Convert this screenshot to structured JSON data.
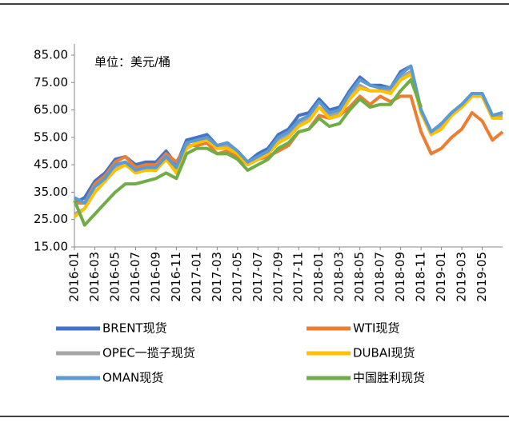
{
  "chart_data": {
    "type": "line",
    "annotation": "单位：美元/桶",
    "categories": [
      "2016-01",
      null,
      "2016-03",
      null,
      "2016-05",
      null,
      "2016-07",
      null,
      "2016-09",
      null,
      "2016-11",
      null,
      "2017-01",
      null,
      "2017-03",
      null,
      "2017-05",
      null,
      "2017-07",
      null,
      "2017-09",
      null,
      "2017-11",
      null,
      "2018-01",
      null,
      "2018-03",
      null,
      "2018-05",
      null,
      "2018-07",
      null,
      "2018-09",
      null,
      "2018-11",
      null,
      "2019-01",
      null,
      "2019-03",
      null,
      "2019-05",
      null,
      null
    ],
    "series": [
      {
        "name": "BRENT现货",
        "color": "#4472c4",
        "values": [
          31,
          33,
          39,
          42,
          47,
          48,
          45,
          46,
          46,
          50,
          45,
          54,
          55,
          56,
          52,
          53,
          50,
          46,
          49,
          51,
          56,
          58,
          63,
          64,
          69,
          65,
          66,
          72,
          77,
          74,
          74,
          73,
          79,
          81,
          65,
          57,
          60,
          64,
          67,
          71,
          71,
          63,
          64
        ]
      },
      {
        "name": "WTI现货",
        "color": "#ed7d31",
        "values": [
          31,
          31,
          38,
          41,
          46,
          48,
          44,
          45,
          45,
          49,
          46,
          52,
          52,
          53,
          49,
          50,
          48,
          45,
          47,
          48,
          50,
          52,
          57,
          58,
          63,
          62,
          63,
          66,
          70,
          67,
          70,
          68,
          70,
          70,
          57,
          49,
          51,
          55,
          58,
          64,
          61,
          54,
          57
        ]
      },
      {
        "name": "OPEC一揽子现货",
        "color": "#a5a5a5",
        "values": [
          27,
          29,
          35,
          39,
          44,
          46,
          43,
          43,
          43,
          48,
          43,
          51,
          53,
          54,
          51,
          52,
          50,
          45,
          47,
          50,
          54,
          56,
          60,
          62,
          66,
          63,
          64,
          69,
          74,
          72,
          72,
          72,
          77,
          79,
          65,
          56,
          59,
          63,
          66,
          70,
          70,
          63,
          63
        ]
      },
      {
        "name": "DUBAI现货",
        "color": "#ffc000",
        "values": [
          26,
          29,
          35,
          39,
          43,
          45,
          42,
          43,
          43,
          47,
          42,
          51,
          53,
          54,
          51,
          51,
          49,
          45,
          47,
          49,
          53,
          55,
          59,
          61,
          66,
          62,
          63,
          69,
          73,
          72,
          72,
          71,
          76,
          78,
          64,
          56,
          58,
          63,
          66,
          70,
          70,
          62,
          62
        ]
      },
      {
        "name": "OMAN现货",
        "color": "#5b9bd5",
        "values": [
          33,
          31,
          37,
          40,
          45,
          46,
          43,
          44,
          44,
          48,
          44,
          53,
          54,
          55,
          52,
          53,
          50,
          46,
          48,
          50,
          55,
          57,
          61,
          63,
          68,
          64,
          65,
          71,
          76,
          74,
          73,
          73,
          78,
          81,
          65,
          57,
          60,
          64,
          67,
          71,
          71,
          63,
          64
        ]
      },
      {
        "name": "中国胜利现货",
        "color": "#70ad47",
        "values": [
          32,
          23,
          27,
          31,
          35,
          38,
          38,
          39,
          40,
          42,
          40,
          49,
          51,
          51,
          49,
          49,
          47,
          43,
          45,
          47,
          51,
          53,
          57,
          58,
          62,
          59,
          60,
          65,
          69,
          66,
          67,
          67,
          72,
          76,
          66,
          null,
          null,
          null,
          null,
          null,
          null,
          null,
          null
        ]
      }
    ],
    "ylim": [
      15,
      85
    ],
    "yticks": [
      {
        "value": 15,
        "label": "15.00"
      },
      {
        "value": 25,
        "label": "25.00"
      },
      {
        "value": 35,
        "label": "35.00"
      },
      {
        "value": 45,
        "label": "45.00"
      },
      {
        "value": 55,
        "label": "55.00"
      },
      {
        "value": 65,
        "label": "65.00"
      },
      {
        "value": 75,
        "label": "75.00"
      },
      {
        "value": 85,
        "label": "85.00"
      }
    ],
    "grid": false
  }
}
